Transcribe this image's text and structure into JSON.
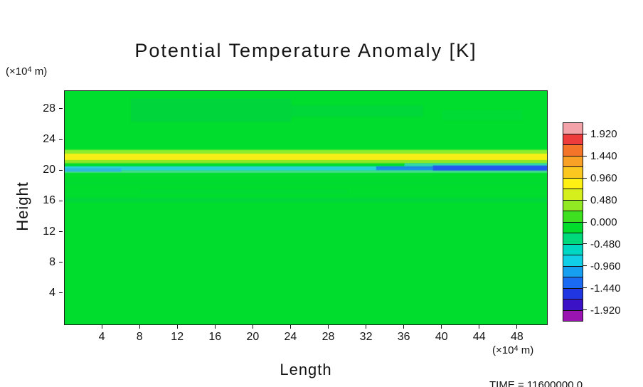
{
  "chart_data": {
    "type": "heatmap",
    "title": "Potential Temperature Anomaly [K]",
    "xlabel": "Length",
    "ylabel": "Height",
    "x_unit": {
      "prefix": "(×10",
      "exp": "4",
      "suffix": " m)"
    },
    "y_unit": {
      "prefix": "(×10",
      "exp": "4",
      "suffix": " m)"
    },
    "time_label": "TIME = 11600000.0",
    "xlim": [
      0,
      51.1
    ],
    "ylim": [
      0,
      30.4
    ],
    "x_ticks": [
      4,
      8,
      12,
      16,
      20,
      24,
      28,
      32,
      36,
      40,
      44,
      48
    ],
    "y_ticks": [
      4,
      8,
      12,
      16,
      20,
      24,
      28
    ],
    "grid": false,
    "legend_position": "right-colorbar",
    "background_value": 0.0,
    "background_color": "#00dd2c",
    "colorbar_range": [
      -2.16,
      2.16
    ],
    "colorbar_step": 0.24,
    "colorbar_ticks": [
      "1.920",
      "1.440",
      "0.960",
      "0.480",
      "0.000",
      "-0.480",
      "-0.960",
      "-1.440",
      "-1.920"
    ],
    "colorbar_colors": [
      "#f4a2aa",
      "#ee3c3c",
      "#f4742a",
      "#f9a026",
      "#fcc71e",
      "#fdf012",
      "#d4ef1c",
      "#92e822",
      "#3edf20",
      "#00dd2c",
      "#00da7c",
      "#00d7c2",
      "#12cfe8",
      "#169ff0",
      "#1a6af2",
      "#2036e2",
      "#3c12c6",
      "#9a14b2"
    ],
    "bands": [
      {
        "x": [
          0,
          51.1
        ],
        "y": [
          22.25,
          22.75
        ],
        "value": 0.3,
        "color": "#9aee2e",
        "alpha": 0.9
      },
      {
        "x": [
          0,
          51.1
        ],
        "y": [
          21.4,
          22.25
        ],
        "value": 0.8,
        "color": "#f6ee14",
        "alpha": 1
      },
      {
        "x": [
          0,
          51.1
        ],
        "y": [
          21.0,
          21.4
        ],
        "value": 0.3,
        "color": "#90e828",
        "alpha": 1
      },
      {
        "x": [
          36,
          51.1
        ],
        "y": [
          20.6,
          21.0
        ],
        "value": -0.4,
        "color": "#3cd8c0",
        "alpha": 0.85
      },
      {
        "x": [
          0,
          51.1
        ],
        "y": [
          20.05,
          20.6
        ],
        "value": -0.8,
        "color": "#28d2d8",
        "alpha": 1
      },
      {
        "x": [
          0,
          51.1
        ],
        "y": [
          19.75,
          20.05
        ],
        "value": -0.3,
        "color": "#52dfa0",
        "alpha": 0.8
      },
      {
        "x": [
          33,
          39
        ],
        "y": [
          20.1,
          20.6
        ],
        "value": -1.0,
        "color": "#1e8ae8",
        "alpha": 1
      },
      {
        "x": [
          39,
          51.1
        ],
        "y": [
          20.05,
          20.7
        ],
        "value": -1.5,
        "color": "#2457ee",
        "alpha": 1
      },
      {
        "x": [
          0,
          6
        ],
        "y": [
          19.9,
          20.35
        ],
        "value": -1.0,
        "color": "#30b4e4",
        "alpha": 0.9
      },
      {
        "x": [
          7,
          24
        ],
        "y": [
          26.4,
          29.4
        ],
        "value": -0.1,
        "color": "#00d04a",
        "alpha": 0.55
      },
      {
        "x": [
          24,
          38
        ],
        "y": [
          27.0,
          28.6
        ],
        "value": -0.1,
        "color": "#00d04a",
        "alpha": 0.4
      },
      {
        "x": [
          40,
          48.5
        ],
        "y": [
          26.6,
          27.9
        ],
        "value": -0.1,
        "color": "#00d64a",
        "alpha": 0.35
      },
      {
        "x": [
          0,
          51.1
        ],
        "y": [
          15.9,
          16.5
        ],
        "value": -0.1,
        "color": "#00d348",
        "alpha": 0.5
      },
      {
        "x": [
          0,
          51.1
        ],
        "y": [
          18.2,
          18.7
        ],
        "value": -0.1,
        "color": "#00d63c",
        "alpha": 0.35
      },
      {
        "x": [
          8,
          30
        ],
        "y": [
          17.0,
          17.6
        ],
        "value": -0.1,
        "color": "#00d648",
        "alpha": 0.3
      }
    ]
  }
}
